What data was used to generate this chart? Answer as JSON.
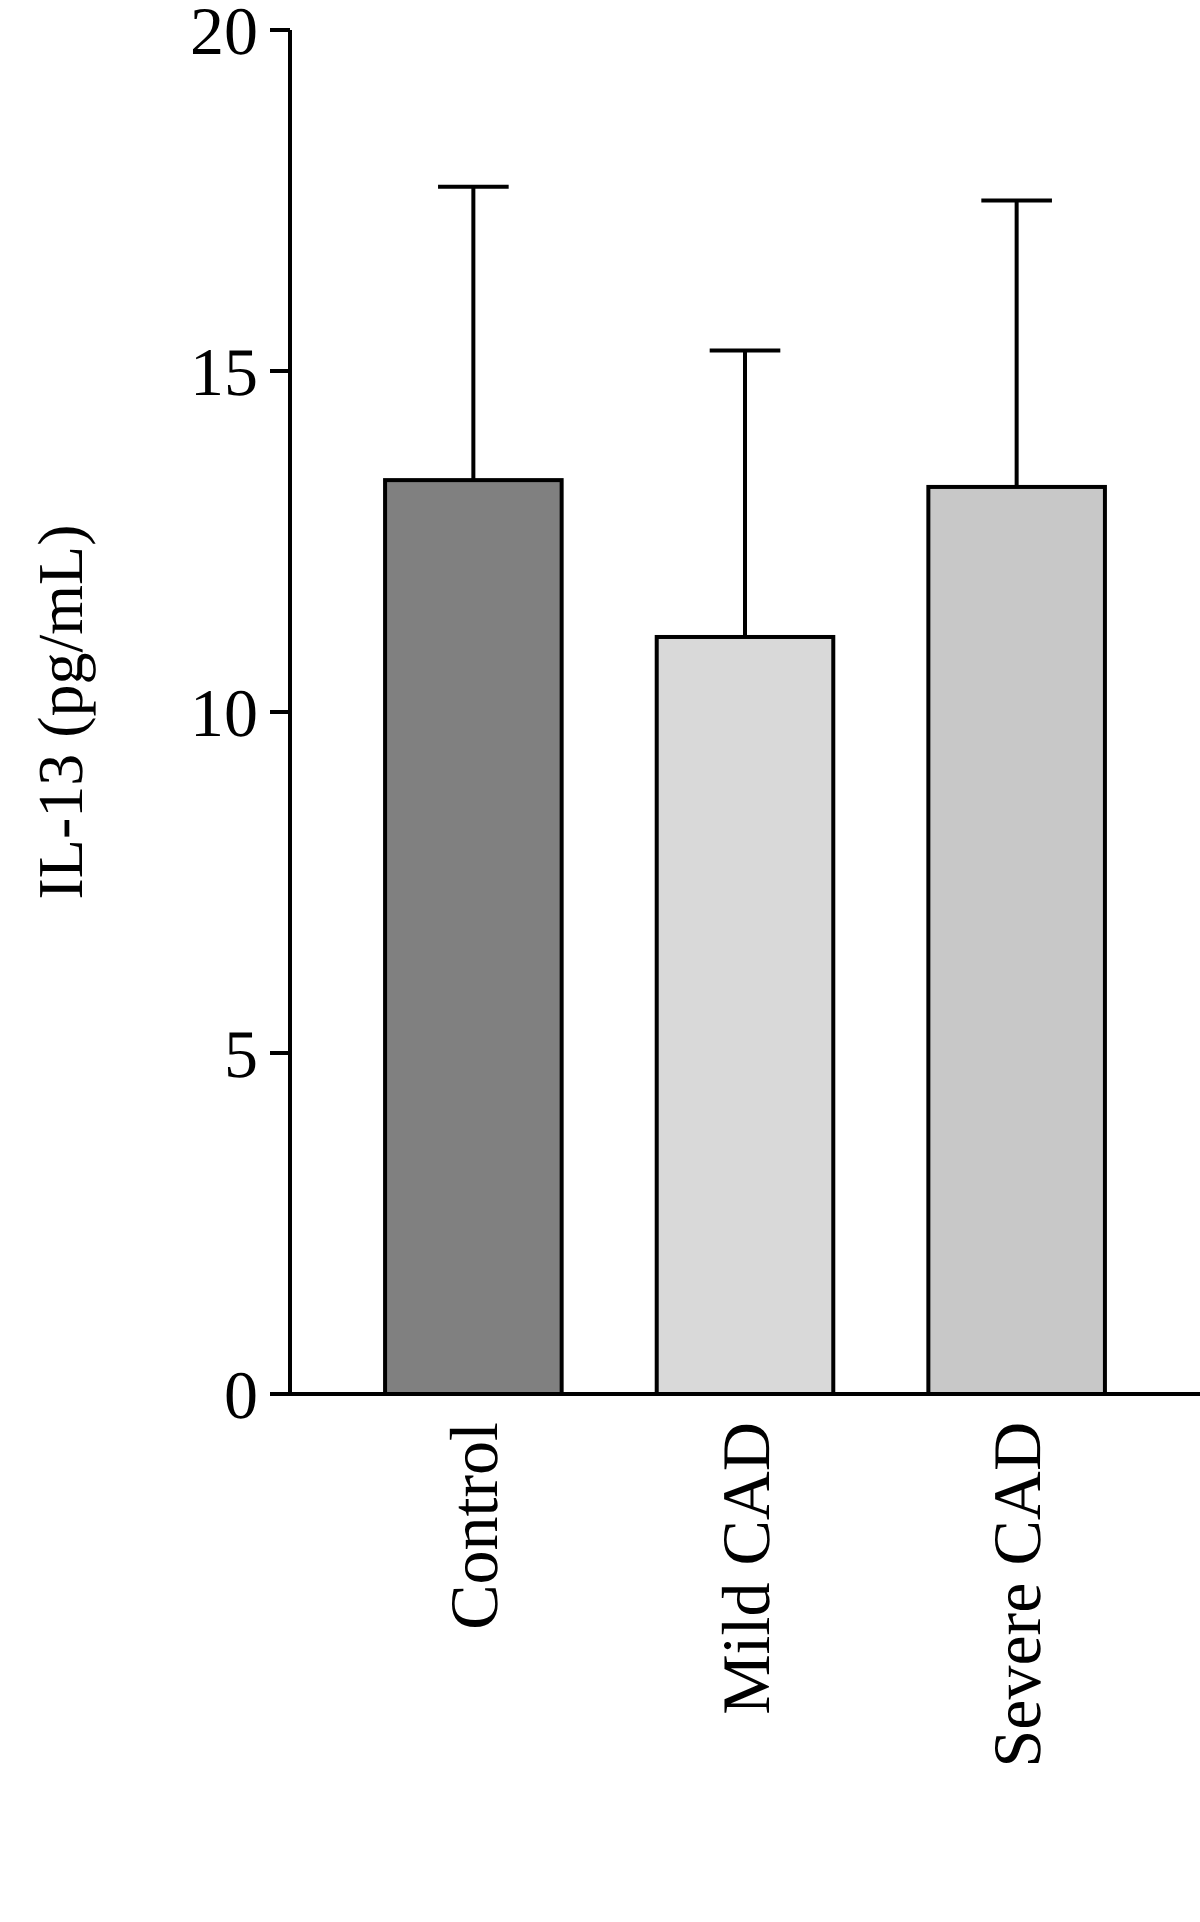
{
  "chart_data": {
    "type": "bar",
    "ylabel": "IL-13 (pg/mL)",
    "categories": [
      "Control",
      "Mild CAD",
      "Severe CAD"
    ],
    "values": [
      13.4,
      11.1,
      13.3
    ],
    "errors": [
      4.3,
      4.2,
      4.2
    ],
    "colors": [
      "#808080",
      "#d9d9d9",
      "#c8c8c8"
    ],
    "ylim": [
      0,
      20
    ],
    "yticks": [
      0,
      5,
      10,
      15,
      20
    ],
    "grid": false
  }
}
